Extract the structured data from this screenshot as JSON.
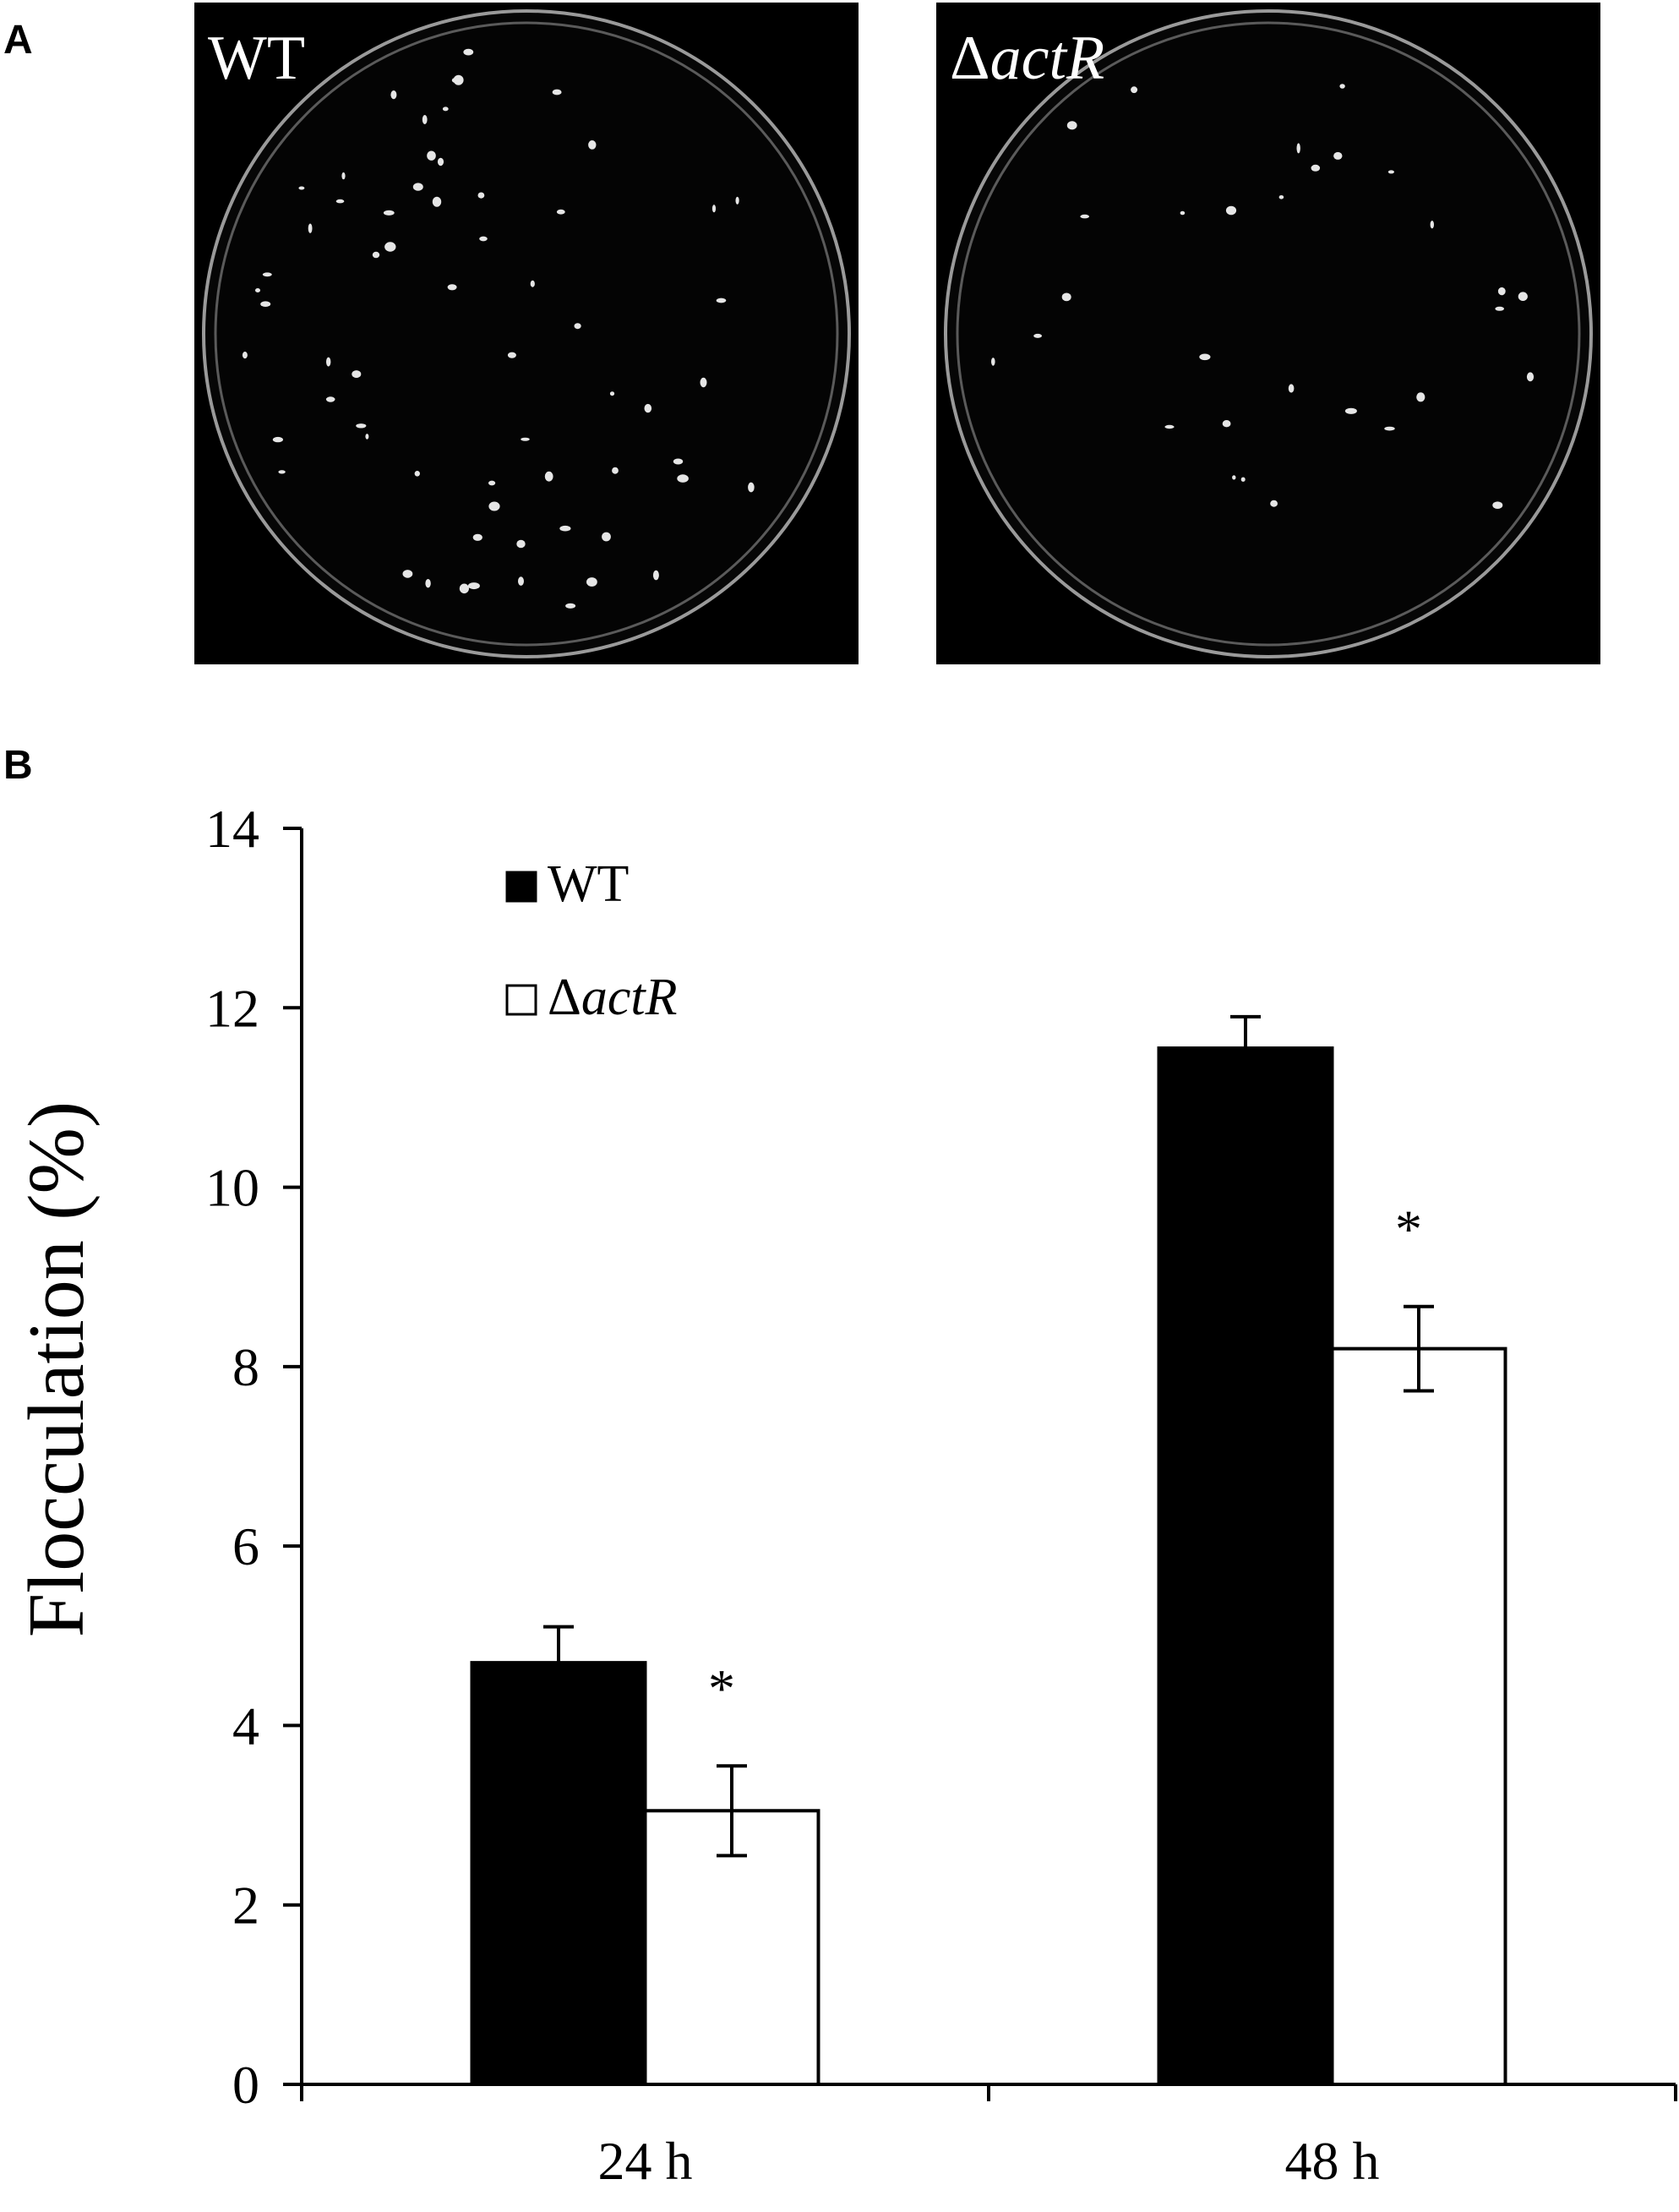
{
  "panels": {
    "a_letter": "A",
    "b_letter": "B"
  },
  "photos": [
    {
      "label_prefix": "",
      "label": "WT",
      "colony_count": 64
    },
    {
      "label_prefix": "Δ",
      "label": "actR",
      "colony_count": 30
    }
  ],
  "chart_data": {
    "type": "bar",
    "categories": [
      "24 h",
      "48 h"
    ],
    "series": [
      {
        "name": "WT",
        "values": [
          4.7,
          11.55
        ],
        "errors": [
          0.4,
          0.35
        ],
        "fill": "#000000"
      },
      {
        "name": "actR",
        "name_prefix": "Δ",
        "values": [
          3.05,
          8.2
        ],
        "errors": [
          0.5,
          0.47
        ],
        "fill": "#ffffff"
      }
    ],
    "significance": [
      "*",
      "*"
    ],
    "ylabel": "Flocculation (%)",
    "xlabel": "",
    "ylim": [
      0,
      14
    ],
    "yticks": [
      0,
      2,
      4,
      6,
      8,
      10,
      12,
      14
    ],
    "legend_position": "top-left",
    "grid": false
  }
}
